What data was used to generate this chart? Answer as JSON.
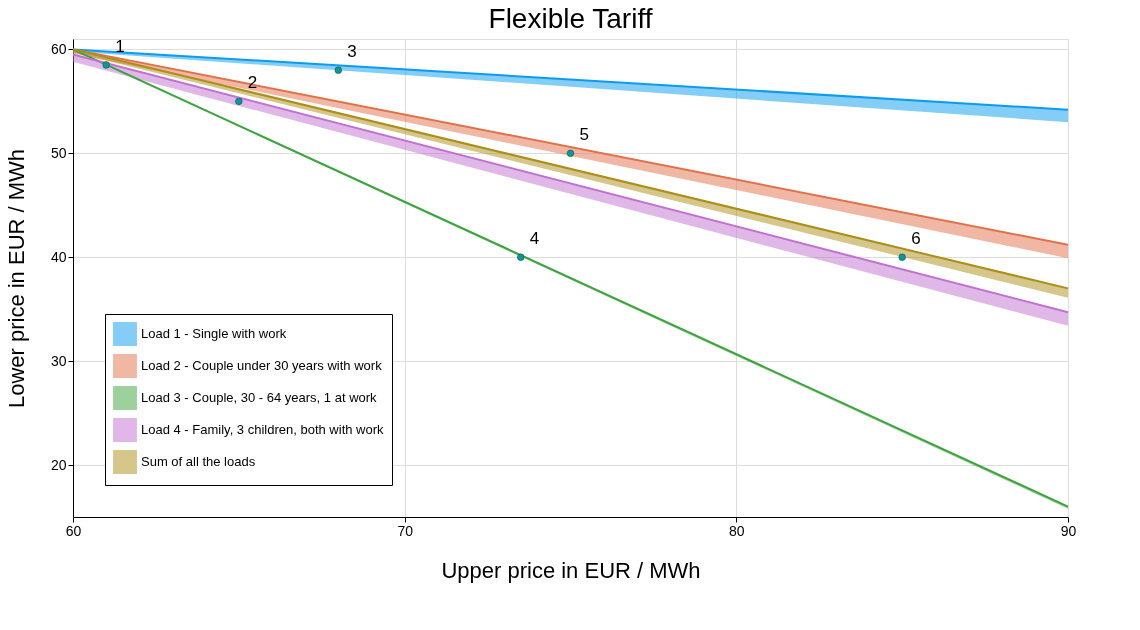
{
  "chart_data": {
    "type": "line",
    "title": "Flexible Tariff",
    "xlabel": "Upper price in EUR / MWh",
    "ylabel": "Lower price in EUR / MWh",
    "x": [
      60,
      90
    ],
    "xlim": [
      60,
      90
    ],
    "xticks": [
      60,
      70,
      80,
      90
    ],
    "ylim": [
      15,
      61
    ],
    "yticks": [
      20,
      30,
      40,
      50,
      60
    ],
    "grid": true,
    "legend": "bottom left",
    "series": [
      {
        "name": "Load 1 - Single with work",
        "color": "#0a9cf0",
        "values": [
          60,
          54.2
        ],
        "lower": [
          59.8,
          53.0
        ],
        "upper": [
          60,
          54.2
        ]
      },
      {
        "name": "Load 2 - Couple under 30 years with work",
        "color": "#e2714a",
        "values": [
          60,
          41.2
        ],
        "lower": [
          59.6,
          39.9
        ],
        "upper": [
          60,
          41.2
        ]
      },
      {
        "name": "Load 3 - Couple, 30 - 64 years, 1 at work",
        "color": "#3ca43c",
        "values": [
          60,
          16.0
        ],
        "lower": [
          59.9,
          15.8
        ],
        "upper": [
          60,
          16.0
        ]
      },
      {
        "name": "Load 4 - Family, 3 children, both with work",
        "color": "#c271d2",
        "values": [
          59.5,
          34.7
        ],
        "lower": [
          58.8,
          33.4
        ],
        "upper": [
          59.5,
          34.7
        ]
      },
      {
        "name": "Sum of all the loads",
        "color": "#ac8e18",
        "values": [
          60,
          37.0
        ],
        "lower": [
          59.7,
          36.1
        ],
        "upper": [
          60,
          37.0
        ]
      },
      {
        "type": "scatter",
        "color": "#0a9a96",
        "x": [
          61,
          65,
          68,
          73.5,
          75,
          85
        ],
        "values": [
          58.5,
          55,
          58,
          40,
          50,
          40
        ]
      }
    ],
    "annotations": [
      {
        "text": "1",
        "x": 61,
        "y": 58.5
      },
      {
        "text": "2",
        "x": 65,
        "y": 55
      },
      {
        "text": "3",
        "x": 68,
        "y": 58
      },
      {
        "text": "4",
        "x": 73.5,
        "y": 40
      },
      {
        "text": "5",
        "x": 75,
        "y": 50
      },
      {
        "text": "6",
        "x": 85,
        "y": 40
      }
    ]
  }
}
